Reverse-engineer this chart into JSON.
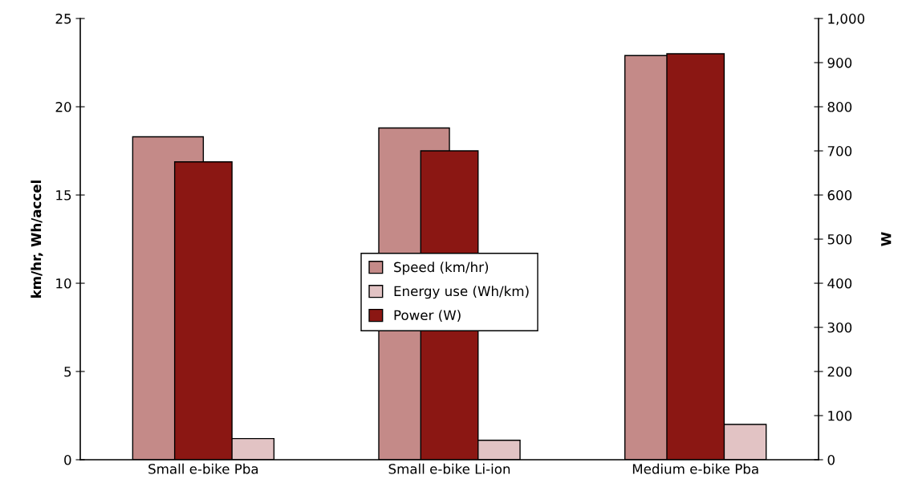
{
  "chart_data": {
    "type": "bar",
    "ylabel": "km/hr, Wh/accel",
    "y2label": "W",
    "categories": [
      "Small e-bike Pba",
      "Small e-bike Li-ion",
      "Medium e-bike Pba"
    ],
    "series": [
      {
        "name": "Speed (km/hr)",
        "color": "#c48a88",
        "values": [
          18.3,
          18.8,
          22.9
        ]
      },
      {
        "name": "Energy use (Wh/km)",
        "color": "#e2c3c4",
        "values": [
          1.2,
          1.1,
          2.0
        ]
      },
      {
        "name": "Power (W)",
        "color": "#8b1713",
        "values": [
          675,
          700,
          920
        ],
        "axis": "y2"
      }
    ],
    "ylim": [
      0,
      25
    ],
    "yticks": [
      0,
      5,
      10,
      15,
      20,
      25
    ],
    "y2lim": [
      0,
      1000
    ],
    "y2ticks": [
      0,
      100,
      200,
      300,
      400,
      500,
      600,
      700,
      800,
      900,
      {
        "value": 1000,
        "label": "1,000"
      }
    ],
    "grid": false,
    "legend": "center"
  }
}
